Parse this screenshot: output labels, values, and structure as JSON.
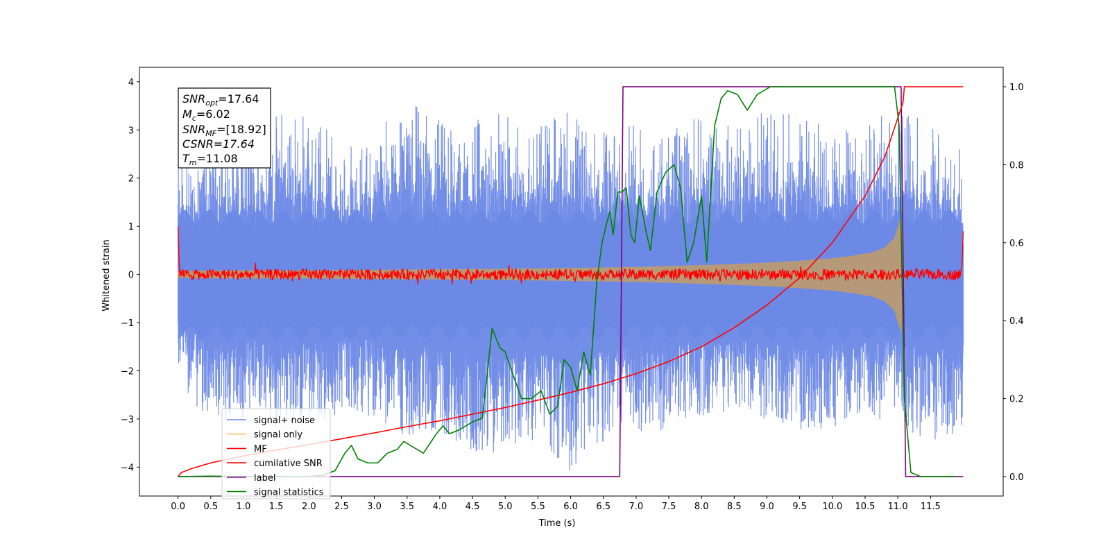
{
  "chart_data": {
    "type": "line",
    "xlabel": "Time (s)",
    "ylabel": "Whitened strain",
    "ylabel_right": "",
    "xlim": [
      -0.59,
      12.61
    ],
    "ylim": [
      -4.6,
      4.3
    ],
    "ylim_right": [
      -0.05,
      1.05
    ],
    "x_ticks": [
      "0.0",
      "0.5",
      "1.0",
      "1.5",
      "2.0",
      "2.5",
      "3.0",
      "3.5",
      "4.0",
      "4.5",
      "5.0",
      "5.5",
      "6.0",
      "6.5",
      "7.0",
      "7.5",
      "8.0",
      "8.5",
      "9.0",
      "9.5",
      "10.0",
      "10.5",
      "11.0",
      "11.5"
    ],
    "y_ticks_left": [
      "−4",
      "−3",
      "−2",
      "−1",
      "0",
      "1",
      "2",
      "3",
      "4"
    ],
    "y_ticks_right": [
      "0.0",
      "0.2",
      "0.4",
      "0.6",
      "0.8",
      "1.0"
    ],
    "grid": false,
    "legend_placement": "lower-left",
    "colors": {
      "signal_noise": "#6b88e6",
      "signal_only": "#f5c26b",
      "signal_only_fill": "#b99a73",
      "mf": "#ff0000",
      "cumulative_snr": "#ff0000",
      "label": "#800080",
      "signal_statistics": "#008000"
    },
    "info_box": {
      "snr_opt_main": "SNR",
      "snr_opt_sub": "opt",
      "snr_opt_val": "=17.64",
      "mc_main": "M",
      "mc_sub": "c",
      "mc_val": "=6.02",
      "snr_mf_main": "SNR",
      "snr_mf_sub": "MF",
      "snr_mf_val": "=[18.92]",
      "csnr": "CSNR=17.64",
      "tm_main": "T",
      "tm_sub": "m",
      "tm_val": "=11.08"
    },
    "series": [
      {
        "name": "signal+ noise",
        "axis": "left",
        "description_values": "noise envelope",
        "envelope": {
          "x": [
            0.0,
            0.5,
            1.0,
            1.5,
            2.0,
            2.5,
            3.0,
            3.5,
            4.0,
            4.5,
            5.0,
            5.5,
            6.0,
            6.5,
            7.0,
            7.5,
            8.0,
            8.5,
            9.0,
            9.5,
            10.0,
            10.5,
            11.0,
            11.5,
            12.0
          ],
          "upper": [
            2.2,
            3.0,
            2.7,
            3.4,
            3.5,
            2.6,
            2.9,
            3.9,
            3.2,
            3.2,
            3.5,
            3.2,
            3.4,
            3.0,
            3.1,
            3.0,
            3.3,
            3.1,
            3.4,
            3.4,
            3.0,
            3.1,
            3.6,
            3.2,
            2.6
          ],
          "lower": [
            -2.1,
            -3.3,
            -3.0,
            -3.2,
            -3.2,
            -2.9,
            -3.0,
            -3.4,
            -3.3,
            -3.8,
            -3.7,
            -3.4,
            -4.1,
            -3.5,
            -3.3,
            -3.3,
            -3.0,
            -3.0,
            -3.0,
            -3.3,
            -3.2,
            -3.0,
            -3.1,
            -3.6,
            -3.3
          ]
        }
      },
      {
        "name": "signal only",
        "axis": "left",
        "x": [
          0.0,
          1.0,
          2.0,
          3.0,
          4.0,
          5.0,
          6.0,
          6.5,
          7.0,
          7.5,
          8.0,
          8.5,
          9.0,
          9.5,
          10.0,
          10.3,
          10.6,
          10.8,
          10.95,
          11.05,
          11.1
        ],
        "amplitude": [
          0.07,
          0.08,
          0.08,
          0.09,
          0.1,
          0.11,
          0.13,
          0.14,
          0.15,
          0.17,
          0.19,
          0.21,
          0.24,
          0.28,
          0.33,
          0.38,
          0.45,
          0.55,
          0.75,
          1.2,
          0.0
        ]
      },
      {
        "name": "MF",
        "axis": "left",
        "description_values": "noise around 0",
        "x": [
          0.0,
          0.02,
          12.0
        ],
        "y": [
          1.0,
          0.05,
          0.9
        ]
      },
      {
        "name": "cumilative SNR",
        "axis": "right",
        "x": [
          0.0,
          0.05,
          0.2,
          0.5,
          1.0,
          1.5,
          2.0,
          2.5,
          3.0,
          3.5,
          4.0,
          4.5,
          5.0,
          5.5,
          6.0,
          6.5,
          7.0,
          7.5,
          8.0,
          8.5,
          9.0,
          9.5,
          10.0,
          10.5,
          10.8,
          11.0,
          11.08,
          11.1,
          12.0
        ],
        "y": [
          0.0,
          0.01,
          0.02,
          0.035,
          0.053,
          0.068,
          0.082,
          0.097,
          0.112,
          0.128,
          0.143,
          0.16,
          0.177,
          0.196,
          0.216,
          0.238,
          0.264,
          0.295,
          0.333,
          0.382,
          0.44,
          0.51,
          0.6,
          0.72,
          0.82,
          0.92,
          0.96,
          1.0,
          1.0
        ]
      },
      {
        "name": "label",
        "axis": "right",
        "x": [
          0.0,
          6.75,
          6.8,
          11.05,
          11.12,
          12.0
        ],
        "y": [
          0.0,
          0.0,
          1.0,
          1.0,
          0.0,
          0.0
        ]
      },
      {
        "name": "signal statistics",
        "axis": "right",
        "x": [
          0.0,
          0.5,
          1.0,
          1.5,
          2.0,
          2.2,
          2.4,
          2.55,
          2.65,
          2.75,
          2.9,
          3.05,
          3.2,
          3.35,
          3.45,
          3.6,
          3.75,
          3.95,
          4.05,
          4.15,
          4.3,
          4.5,
          4.65,
          4.8,
          4.92,
          5.0,
          5.1,
          5.25,
          5.4,
          5.55,
          5.68,
          5.8,
          5.9,
          6.0,
          6.1,
          6.2,
          6.3,
          6.4,
          6.48,
          6.55,
          6.6,
          6.65,
          6.72,
          6.78,
          6.85,
          6.92,
          6.98,
          7.05,
          7.15,
          7.22,
          7.32,
          7.45,
          7.58,
          7.68,
          7.78,
          7.88,
          8.0,
          8.08,
          8.2,
          8.3,
          8.4,
          8.55,
          8.7,
          8.85,
          8.95,
          9.05,
          9.15,
          9.3,
          9.5,
          9.8,
          10.2,
          10.6,
          10.95,
          11.02,
          11.1,
          11.2,
          11.35,
          11.9
        ],
        "y": [
          0.0,
          0.001,
          0.0,
          0.0,
          0.0,
          0.003,
          0.015,
          0.06,
          0.08,
          0.045,
          0.035,
          0.035,
          0.06,
          0.07,
          0.09,
          0.075,
          0.06,
          0.11,
          0.13,
          0.11,
          0.12,
          0.14,
          0.15,
          0.38,
          0.33,
          0.32,
          0.27,
          0.2,
          0.2,
          0.22,
          0.16,
          0.18,
          0.3,
          0.28,
          0.22,
          0.32,
          0.26,
          0.5,
          0.6,
          0.65,
          0.68,
          0.62,
          0.73,
          0.73,
          0.74,
          0.62,
          0.6,
          0.72,
          0.63,
          0.58,
          0.73,
          0.78,
          0.8,
          0.74,
          0.55,
          0.6,
          0.72,
          0.55,
          0.9,
          0.97,
          0.99,
          0.98,
          0.94,
          0.98,
          0.99,
          1.0,
          1.0,
          1.0,
          1.0,
          1.0,
          1.0,
          1.0,
          1.0,
          0.9,
          0.2,
          0.01,
          0.0,
          0.0
        ]
      }
    ]
  }
}
